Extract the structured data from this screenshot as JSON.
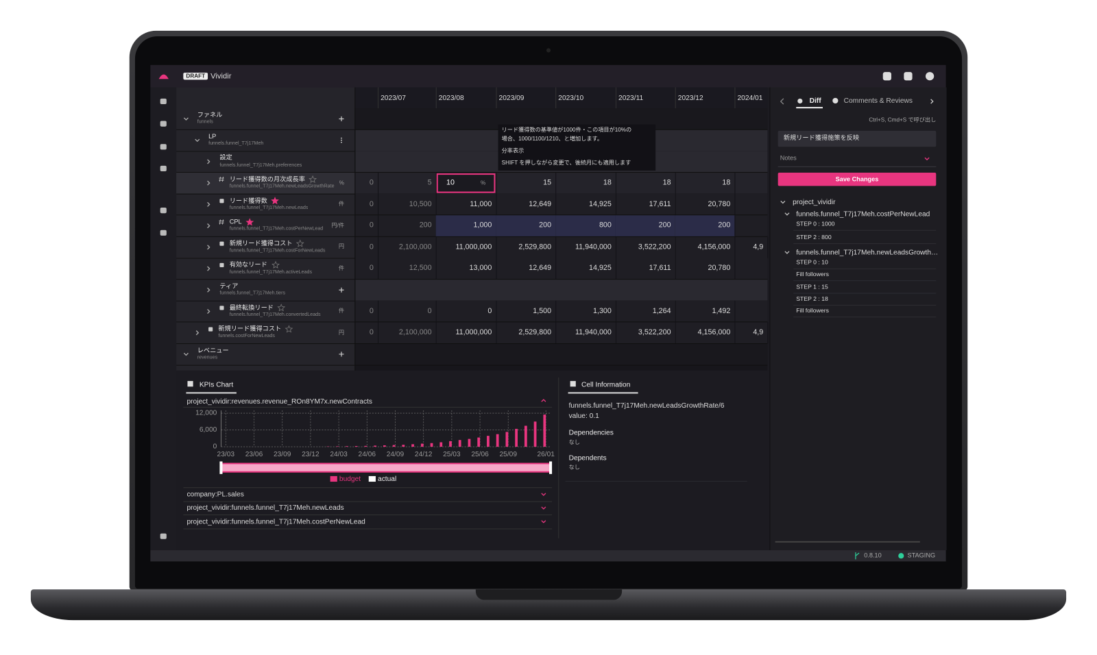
{
  "header": {
    "badge": "DRAFT",
    "app_name": "Vividir"
  },
  "tree": [
    {
      "label": "ファネル",
      "key": "funnels"
    },
    {
      "label": "LP",
      "key": "funnels.funnel_T7j17Meh"
    },
    {
      "label": "設定",
      "key": "funnels.funnel_T7j17Meh.preferences"
    },
    {
      "label": "リード獲得数の月次成長率",
      "key": "funnels.funnel_T7j17Meh.newLeadsGrowthRate",
      "unit": "%"
    },
    {
      "label": "リード獲得数",
      "key": "funnels.funnel_T7j17Meh.newLeads",
      "unit": "件"
    },
    {
      "label": "CPL",
      "key": "funnels.funnel_T7j17Meh.costPerNewLead",
      "unit": "円/件"
    },
    {
      "label": "新規リード獲得コスト",
      "key": "funnels.funnel_T7j17Meh.costForNewLeads",
      "unit": "円"
    },
    {
      "label": "有効なリード",
      "key": "funnels.funnel_T7j17Meh.activeLeads",
      "unit": "件"
    },
    {
      "label": "ティア",
      "key": "funnels.funnel_T7j17Meh.tiers"
    },
    {
      "label": "最終転換リード",
      "key": "funnels.funnel_T7j17Meh.convertedLeads",
      "unit": "件"
    },
    {
      "label": "新規リード獲得コスト",
      "key": "funnels.costForNewLeads",
      "unit": "円"
    },
    {
      "label": "レベニュー",
      "key": "revenues"
    }
  ],
  "grid": {
    "columns": [
      "2023/07",
      "2023/08",
      "2023/09",
      "2023/10",
      "2023/11",
      "2023/12",
      "2024/01"
    ],
    "edit_suffix": "%",
    "rows": [
      null,
      null,
      null,
      [
        "0",
        "5",
        "10",
        "15",
        "18",
        "18",
        "18",
        null
      ],
      [
        "0",
        "10,500",
        "11,000",
        "12,649",
        "14,925",
        "17,611",
        "20,780",
        null
      ],
      [
        "0",
        "200",
        "1,000",
        "200",
        "800",
        "200",
        "200",
        null
      ],
      [
        "0",
        "2,100,000",
        "11,000,000",
        "2,529,800",
        "11,940,000",
        "3,522,200",
        "4,156,000",
        "4,9"
      ],
      [
        "0",
        "12,500",
        "13,000",
        "12,649",
        "14,925",
        "17,611",
        "20,780",
        null
      ],
      null,
      [
        "0",
        "0",
        "0",
        "1,500",
        "1,300",
        "1,264",
        "1,492",
        null
      ],
      [
        "0",
        "2,100,000",
        "11,000,000",
        "2,529,800",
        "11,940,000",
        "3,522,200",
        "4,156,000",
        "4,9"
      ],
      null
    ]
  },
  "tooltip": [
    "リード獲得数の基準値が1000件・この項目が10%の",
    "場合、1000/1100/1210、と増加します。",
    "分率表示",
    "SHIFT を押しながら変更で、後続月にも適用します"
  ],
  "right_panel": {
    "tabs": [
      "Diff",
      "Comments & Reviews"
    ],
    "hint": "Ctrl+S, Cmd+S で呼び出し",
    "message": "新規リード獲得施策を反映",
    "notes": "Notes",
    "button": "Save Changes",
    "project": "project_vividir",
    "changes": [
      {
        "key": "funnels.funnel_T7j17Meh.costPerNewLead",
        "steps": [
          "STEP 0 :  1000",
          "STEP 2 :  800"
        ]
      },
      {
        "key": "funnels.funnel_T7j17Meh.newLeadsGrowthRate",
        "steps": [
          "STEP 0 :  10",
          "Fill followers",
          "STEP 1 :  15",
          "STEP 2 :  18",
          "Fill followers"
        ]
      }
    ]
  },
  "kpi_panel": {
    "title": "KPIs Chart",
    "collapsed": [
      "company:PL.sales",
      "project_vividir:funnels.funnel_T7j17Meh.newLeads",
      "project_vividir:funnels.funnel_T7j17Meh.costPerNewLead"
    ]
  },
  "chart_data": {
    "type": "bar",
    "title": "project_vividir:revenues.revenue_ROn8YM7x.newContracts",
    "categories": [
      "23/03",
      null,
      null,
      "23/06",
      null,
      null,
      "23/09",
      null,
      null,
      "23/12",
      null,
      null,
      "24/03",
      null,
      null,
      "24/06",
      null,
      null,
      "24/09",
      null,
      null,
      "24/12",
      null,
      null,
      "25/03",
      null,
      null,
      "25/06",
      null,
      null,
      "25/09",
      null,
      null,
      null,
      "26/01"
    ],
    "series": [
      {
        "name": "budget",
        "color": "#e8357f",
        "values": [
          0,
          0,
          0,
          0,
          0,
          0,
          0,
          0,
          0,
          0,
          0,
          100,
          150,
          200,
          250,
          300,
          400,
          500,
          600,
          700,
          900,
          1100,
          1300,
          1600,
          2000,
          2400,
          2800,
          3300,
          3900,
          4500,
          5300,
          6400,
          7500,
          9000,
          11500
        ]
      },
      {
        "name": "actual",
        "color": "#ffffff",
        "values": [
          null,
          null,
          null,
          null,
          null,
          null,
          null,
          null,
          null,
          null,
          null,
          null,
          null,
          null,
          null,
          null,
          null,
          null,
          null,
          null,
          null,
          null,
          null,
          null,
          null,
          null,
          null,
          null,
          null,
          null,
          null,
          null,
          null,
          null,
          null
        ]
      }
    ],
    "ylim": [
      0,
      13000
    ],
    "yticks": [
      0,
      {
        "value": 6000,
        "label": "6,000"
      },
      {
        "value": 12000,
        "label": "12,000"
      }
    ],
    "grid": true
  },
  "cell_info": {
    "title": "Cell Information",
    "key": "funnels.funnel_T7j17Meh.newLeadsGrowthRate/6",
    "value": "value: 0.1",
    "dependencies_title": "Dependencies",
    "dependencies": "なし",
    "dependents_title": "Dependents",
    "dependents": "なし"
  },
  "status": {
    "version": "0.8.10",
    "env": "STAGING"
  }
}
